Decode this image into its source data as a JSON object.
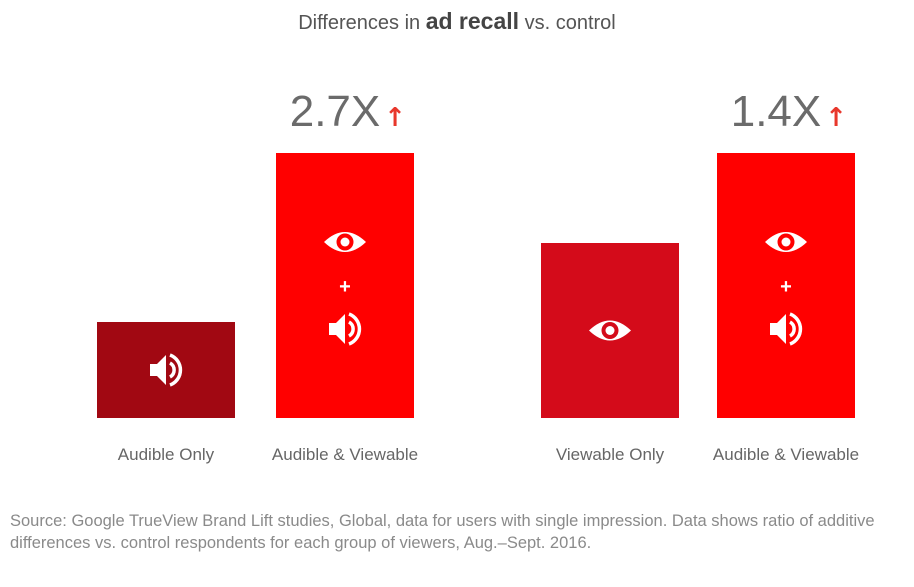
{
  "title": {
    "prefix": "Differences in",
    "emphasis": "ad recall",
    "suffix": "vs. control"
  },
  "chart_data": {
    "type": "bar",
    "title": "Differences in ad recall vs. control",
    "categories": [
      "Audible Only",
      "Audible & Viewable",
      "Viewable Only",
      "Audible & Viewable"
    ],
    "values": [
      1.0,
      2.7,
      1.0,
      1.4
    ],
    "groups": [
      {
        "bars": [
          0,
          1
        ],
        "multiplier_label": "2.7X",
        "baseline_value": 1.0,
        "combined_value": 2.7
      },
      {
        "bars": [
          2,
          3
        ],
        "multiplier_label": "1.4X",
        "baseline_value": 1.0,
        "combined_value": 1.4
      }
    ],
    "bar_icons": [
      [
        "speaker-icon"
      ],
      [
        "eye-icon",
        "plus",
        "speaker-icon"
      ],
      [
        "eye-icon"
      ],
      [
        "eye-icon",
        "plus",
        "speaker-icon"
      ]
    ],
    "bar_colors": [
      "#a10812",
      "#ff0000",
      "#d40b1a",
      "#ff0000"
    ],
    "arrow_color": "#e8372c",
    "label_color": "#666666",
    "multiplier_color": "#6b6b6b",
    "up_arrow_symbol": "↑"
  },
  "source": "Source: Google TrueView Brand Lift studies, Global, data for users with single impression. Data shows ratio of additive differences vs. control respondents for each group of viewers, Aug.–Sept. 2016."
}
